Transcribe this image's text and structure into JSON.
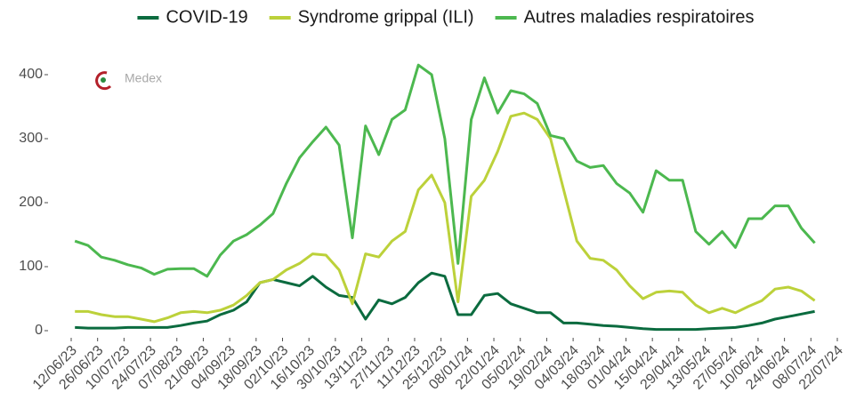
{
  "logo": "Medex",
  "chart_data": {
    "type": "line",
    "x": [
      "14/06/23",
      "21/06/23",
      "28/06/23",
      "05/07/23",
      "12/07/23",
      "19/07/23",
      "26/07/23",
      "02/08/23",
      "09/08/23",
      "16/08/23",
      "23/08/23",
      "30/08/23",
      "06/09/23",
      "13/09/23",
      "20/09/23",
      "27/09/23",
      "04/10/23",
      "11/10/23",
      "18/10/23",
      "25/10/23",
      "01/11/23",
      "08/11/23",
      "15/11/23",
      "22/11/23",
      "29/11/23",
      "06/12/23",
      "13/12/23",
      "20/12/23",
      "27/12/23",
      "03/01/24",
      "10/01/24",
      "17/01/24",
      "24/01/24",
      "31/01/24",
      "07/02/24",
      "14/02/24",
      "21/02/24",
      "28/02/24",
      "06/03/24",
      "13/03/24",
      "20/03/24",
      "27/03/24",
      "03/04/24",
      "10/04/24",
      "17/04/24",
      "24/04/24",
      "01/05/24",
      "08/05/24",
      "15/05/24",
      "22/05/24",
      "29/05/24",
      "05/06/24",
      "12/06/24",
      "19/06/24",
      "26/06/24",
      "03/07/24",
      "10/07/24"
    ],
    "series": [
      {
        "name": "COVID-19",
        "color": "#0b6b3f",
        "values": [
          5,
          4,
          4,
          4,
          5,
          5,
          5,
          5,
          8,
          12,
          15,
          25,
          32,
          45,
          75,
          80,
          75,
          70,
          85,
          68,
          55,
          52,
          18,
          48,
          42,
          52,
          75,
          90,
          85,
          25,
          25,
          55,
          58,
          42,
          35,
          28,
          28,
          12,
          12,
          10,
          8,
          7,
          5,
          3,
          2,
          2,
          2,
          2,
          3,
          4,
          5,
          8,
          12,
          18,
          22,
          26,
          30
        ]
      },
      {
        "name": "Syndrome grippal (ILI)",
        "color": "#bcd13a",
        "values": [
          30,
          30,
          25,
          22,
          22,
          18,
          14,
          20,
          28,
          30,
          28,
          32,
          40,
          55,
          75,
          80,
          95,
          105,
          120,
          118,
          95,
          42,
          120,
          115,
          140,
          155,
          220,
          243,
          200,
          45,
          210,
          235,
          280,
          335,
          340,
          330,
          300,
          220,
          140,
          113,
          110,
          95,
          70,
          50,
          60,
          62,
          60,
          40,
          28,
          35,
          28,
          38,
          47,
          65,
          68,
          62,
          47
        ]
      },
      {
        "name": "Autres maladies respiratoires",
        "color": "#4cb84f",
        "values": [
          140,
          133,
          115,
          110,
          103,
          98,
          88,
          96,
          97,
          97,
          85,
          118,
          140,
          150,
          165,
          183,
          230,
          270,
          295,
          318,
          290,
          145,
          320,
          275,
          330,
          345,
          415,
          400,
          300,
          105,
          330,
          395,
          340,
          375,
          370,
          355,
          305,
          300,
          265,
          255,
          258,
          230,
          215,
          185,
          250,
          235,
          235,
          155,
          135,
          155,
          130,
          175,
          175,
          195,
          195,
          160,
          137
        ]
      }
    ],
    "xlim": [
      "12/06/23",
      "22/07/24"
    ],
    "xticks": [
      "12/06/23",
      "26/06/23",
      "10/07/23",
      "24/07/23",
      "07/08/23",
      "21/08/23",
      "04/09/23",
      "18/09/23",
      "02/10/23",
      "16/10/23",
      "30/10/23",
      "13/11/23",
      "27/11/23",
      "11/12/23",
      "25/12/23",
      "08/01/24",
      "22/01/24",
      "05/02/24",
      "19/02/24",
      "04/03/24",
      "18/03/24",
      "01/04/24",
      "15/04/24",
      "29/04/24",
      "13/05/24",
      "27/05/24",
      "10/06/24",
      "24/06/24",
      "08/07/24",
      "22/07/24"
    ],
    "ylim": [
      0,
      400
    ],
    "yticks": [
      0,
      100,
      200,
      300,
      400
    ],
    "grid": false,
    "legend": "top"
  }
}
